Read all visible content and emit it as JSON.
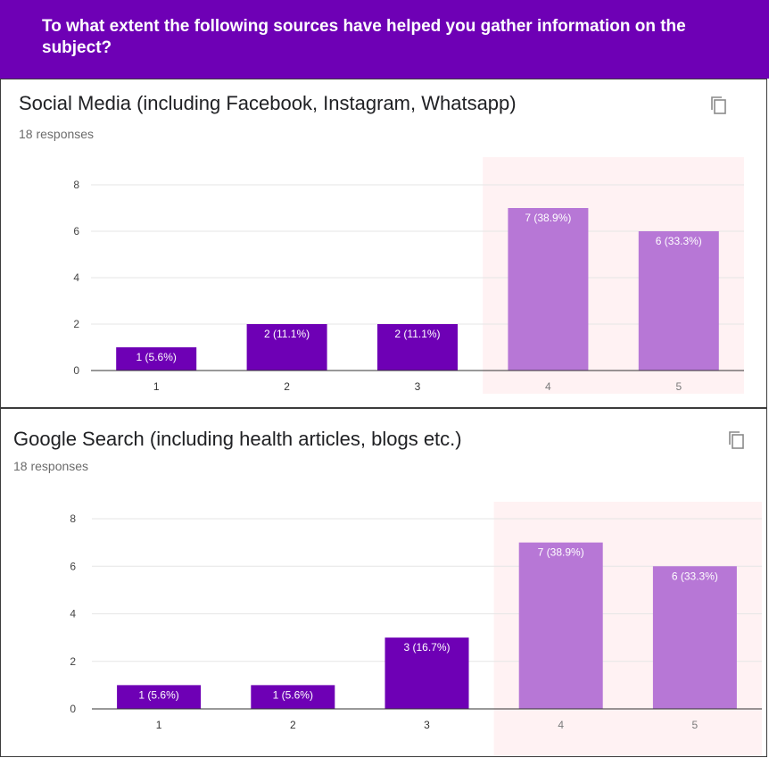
{
  "header": {
    "question": "To what extent the following sources have helped you gather information on the subject?"
  },
  "colors": {
    "header_bg": "#6e00b5",
    "bar_dark": "#6e00b5",
    "bar_light": "#b777d6",
    "highlight_bg": "#fff2f3",
    "grid": "#e6e6e6"
  },
  "cards": [
    {
      "title": "Social Media (including Facebook, Instagram, Whatsapp)",
      "responses": "18 responses",
      "copy_icon": "copy-icon"
    },
    {
      "title": "Google Search (including health articles, blogs etc.)",
      "responses": "18 responses",
      "copy_icon": "copy-icon"
    }
  ],
  "chart_data": [
    {
      "type": "bar",
      "categories": [
        "1",
        "2",
        "3",
        "4",
        "5"
      ],
      "values": [
        1,
        2,
        2,
        7,
        6
      ],
      "data_labels": [
        "1 (5.6%)",
        "2 (11.1%)",
        "2 (11.1%)",
        "7 (38.9%)",
        "6 (33.3%)"
      ],
      "highlighted": [
        "4",
        "5"
      ],
      "ylim": [
        0,
        8
      ],
      "yticks": [
        0,
        2,
        4,
        6,
        8
      ],
      "grid": true,
      "xlabel": "",
      "ylabel": ""
    },
    {
      "type": "bar",
      "categories": [
        "1",
        "2",
        "3",
        "4",
        "5"
      ],
      "values": [
        1,
        1,
        3,
        7,
        6
      ],
      "data_labels": [
        "1 (5.6%)",
        "1 (5.6%)",
        "3 (16.7%)",
        "7 (38.9%)",
        "6 (33.3%)"
      ],
      "highlighted": [
        "4",
        "5"
      ],
      "ylim": [
        0,
        8
      ],
      "yticks": [
        0,
        2,
        4,
        6,
        8
      ],
      "grid": true,
      "xlabel": "",
      "ylabel": ""
    }
  ]
}
